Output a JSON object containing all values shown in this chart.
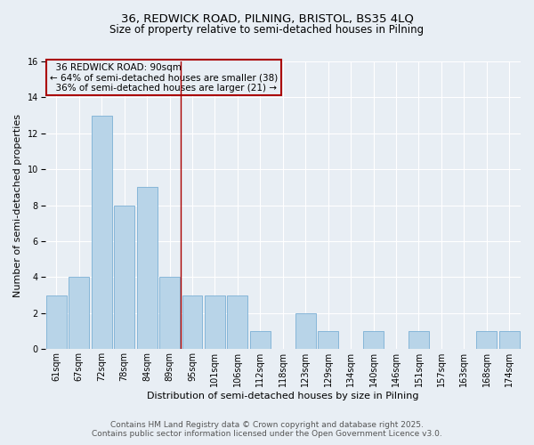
{
  "title1": "36, REDWICK ROAD, PILNING, BRISTOL, BS35 4LQ",
  "title2": "Size of property relative to semi-detached houses in Pilning",
  "xlabel": "Distribution of semi-detached houses by size in Pilning",
  "ylabel": "Number of semi-detached properties",
  "categories": [
    "61sqm",
    "67sqm",
    "72sqm",
    "78sqm",
    "84sqm",
    "89sqm",
    "95sqm",
    "101sqm",
    "106sqm",
    "112sqm",
    "118sqm",
    "123sqm",
    "129sqm",
    "134sqm",
    "140sqm",
    "146sqm",
    "151sqm",
    "157sqm",
    "163sqm",
    "168sqm",
    "174sqm"
  ],
  "values": [
    3,
    4,
    13,
    8,
    9,
    4,
    3,
    3,
    3,
    1,
    0,
    2,
    1,
    0,
    1,
    0,
    1,
    0,
    0,
    1,
    1
  ],
  "bar_color": "#b8d4e8",
  "bar_edge_color": "#7bafd4",
  "subject_index": 5,
  "subject_label": "36 REDWICK ROAD: 90sqm",
  "smaller_pct": "64%",
  "smaller_count": 38,
  "larger_pct": "36%",
  "larger_count": 21,
  "annotation_box_color": "#aa0000",
  "vline_color": "#aa0000",
  "ylim": [
    0,
    16
  ],
  "yticks": [
    0,
    2,
    4,
    6,
    8,
    10,
    12,
    14,
    16
  ],
  "background_color": "#e8eef4",
  "grid_color": "#ffffff",
  "footer_line1": "Contains HM Land Registry data © Crown copyright and database right 2025.",
  "footer_line2": "Contains public sector information licensed under the Open Government Licence v3.0.",
  "title_fontsize": 9.5,
  "subtitle_fontsize": 8.5,
  "axis_label_fontsize": 8,
  "tick_fontsize": 7,
  "annotation_fontsize": 7.5,
  "footer_fontsize": 6.5
}
